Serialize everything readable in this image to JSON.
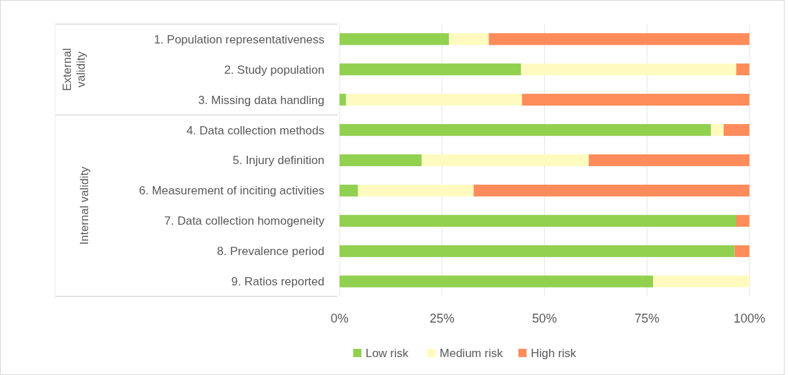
{
  "chart_data": {
    "type": "bar",
    "orientation": "horizontal",
    "stacked": true,
    "categories": [
      "1. Population representativeness",
      "2. Study population",
      "3. Missing data handling",
      "4. Data collection methods",
      "5. Injury definition",
      "6. Measurement of inciting activities",
      "7. Data collection homogeneity",
      "8. Prevalence period",
      "9. Ratios reported"
    ],
    "series": [
      {
        "name": "Low risk",
        "color": "#92d050",
        "values": [
          26.7,
          44.3,
          1.6,
          90.6,
          20.0,
          4.5,
          96.8,
          96.4,
          76.5
        ]
      },
      {
        "name": "Medium risk",
        "color": "#fffbc0",
        "values": [
          9.7,
          52.5,
          42.9,
          3.1,
          40.8,
          28.2,
          0,
          0,
          23.5
        ]
      },
      {
        "name": "High risk",
        "color": "#ff8c5a",
        "values": [
          63.6,
          3.2,
          55.5,
          6.3,
          39.2,
          67.3,
          3.2,
          3.6,
          0
        ]
      }
    ],
    "xlim": [
      0,
      100
    ],
    "xticks": [
      {
        "value": 0,
        "label": "0%"
      },
      {
        "value": 25,
        "label": "25%"
      },
      {
        "value": 50,
        "label": "50%"
      },
      {
        "value": 75,
        "label": "75%"
      },
      {
        "value": 100,
        "label": "100%"
      }
    ],
    "grid": "x",
    "legend": "bottom",
    "annotations": [
      "External validity",
      "Internal validity"
    ]
  }
}
